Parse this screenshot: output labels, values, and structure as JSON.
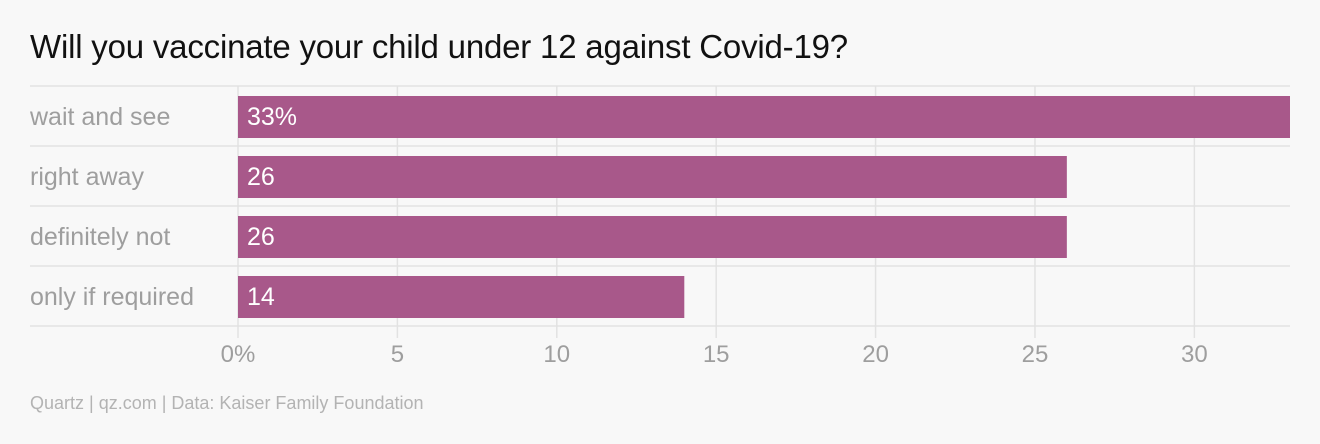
{
  "chart_data": {
    "type": "bar",
    "orientation": "horizontal",
    "title": "Will you vaccinate your child under 12 against Covid-19?",
    "categories": [
      "wait and see",
      "right away",
      "definitely not",
      "only if required"
    ],
    "values": [
      33,
      26,
      26,
      14
    ],
    "value_labels": [
      "33%",
      "26",
      "26",
      "14"
    ],
    "x_ticks": [
      0,
      5,
      10,
      15,
      20,
      25,
      30
    ],
    "x_tick_labels": [
      "0%",
      "5",
      "10",
      "15",
      "20",
      "25",
      "30"
    ],
    "xlim": [
      0,
      33
    ],
    "grid": true,
    "bar_color": "#a8588a",
    "source": "Quartz | qz.com | Data: Kaiser Family Foundation"
  },
  "colors": {
    "background": "#f8f8f8",
    "grid": "#e2e2e2",
    "category_text": "#9e9e9e",
    "tick_text": "#9e9e9e",
    "value_label_text": "#ffffff",
    "title_text": "#111111",
    "source_text": "#b3b3b3"
  }
}
